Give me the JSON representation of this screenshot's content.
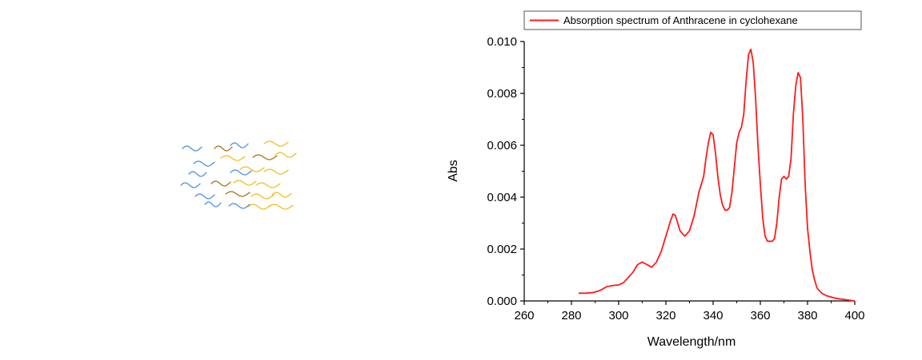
{
  "chart_data": {
    "type": "line",
    "xlabel": "Wavelength/nm",
    "ylabel": "Abs",
    "xlim": [
      260,
      400
    ],
    "ylim": [
      0.0,
      0.01
    ],
    "x_ticks": [
      260,
      280,
      300,
      320,
      340,
      360,
      380,
      400
    ],
    "x_tick_labels": [
      "260",
      "280",
      "300",
      "320",
      "340",
      "360",
      "380",
      "400"
    ],
    "y_ticks": [
      0.0,
      0.002,
      0.004,
      0.006,
      0.008,
      0.01
    ],
    "y_tick_labels": [
      "0.000",
      "0.002",
      "0.004",
      "0.006",
      "0.008",
      "0.010"
    ],
    "grid": false,
    "legend_position": "top",
    "series": [
      {
        "name": "Absorption spectrum of Anthracene in cyclohexane",
        "color": "#ff1a1a",
        "x": [
          283,
          286,
          289,
          292,
          295,
          298,
          300,
          302,
          304,
          306,
          308,
          310,
          312,
          314,
          316,
          318,
          320,
          321,
          322,
          323,
          324,
          325,
          326,
          328,
          330,
          332,
          334,
          335,
          336,
          337,
          338,
          339,
          340,
          341,
          342,
          343,
          344,
          345,
          346,
          347,
          348,
          350,
          351,
          352,
          353,
          354,
          355,
          356,
          357,
          358,
          359,
          360,
          361,
          362,
          363,
          364,
          365,
          366,
          367,
          368,
          369,
          370,
          371,
          372,
          373,
          374,
          375,
          376,
          377,
          378,
          379,
          380,
          381,
          382,
          383,
          384,
          386,
          388,
          392,
          396,
          400
        ],
        "y": [
          0.0003,
          0.0003,
          0.00032,
          0.0004,
          0.00055,
          0.0006,
          0.00062,
          0.0007,
          0.0009,
          0.0011,
          0.0014,
          0.0015,
          0.0014,
          0.0013,
          0.0015,
          0.0019,
          0.0025,
          0.0028,
          0.0031,
          0.00335,
          0.0033,
          0.003,
          0.0027,
          0.0025,
          0.0027,
          0.0033,
          0.0042,
          0.0045,
          0.0048,
          0.0055,
          0.0061,
          0.0065,
          0.0064,
          0.0057,
          0.0048,
          0.0041,
          0.0037,
          0.0035,
          0.0035,
          0.0036,
          0.0042,
          0.0061,
          0.0065,
          0.0067,
          0.0072,
          0.0085,
          0.0095,
          0.0097,
          0.0092,
          0.0078,
          0.006,
          0.0045,
          0.0032,
          0.0025,
          0.0023,
          0.0023,
          0.0023,
          0.0024,
          0.003,
          0.004,
          0.0047,
          0.0048,
          0.0047,
          0.0048,
          0.0055,
          0.0072,
          0.0083,
          0.0088,
          0.0086,
          0.007,
          0.0045,
          0.0028,
          0.0019,
          0.0012,
          0.0008,
          0.0005,
          0.0003,
          0.0002,
          0.0001,
          5e-05,
          0.0
        ]
      }
    ]
  },
  "illustration": {
    "name": "wave-pattern-graphic",
    "colors": {
      "blue": "#4d8fe8",
      "brown": "#a8741a",
      "yellow": "#f2be1d"
    }
  }
}
